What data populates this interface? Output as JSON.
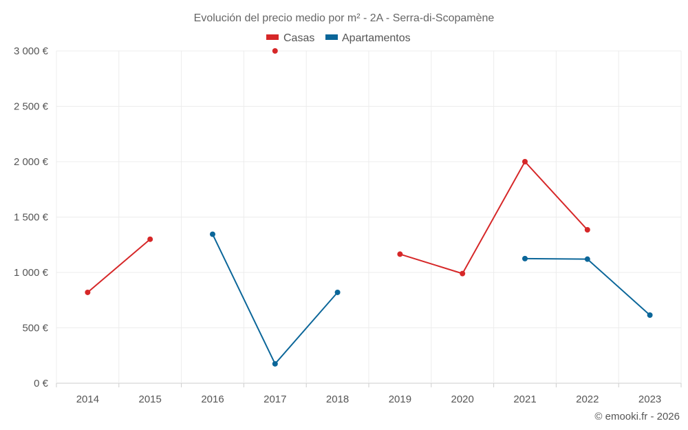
{
  "chart_data": {
    "type": "line",
    "title": "Evolución del precio medio por m² - 2A - Serra-di-Scopamène",
    "categories": [
      "2014",
      "2015",
      "2016",
      "2017",
      "2018",
      "2019",
      "2020",
      "2021",
      "2022",
      "2023"
    ],
    "y_ticks": [
      0,
      500,
      1000,
      1500,
      2000,
      2500,
      3000
    ],
    "y_tick_labels": [
      "0 €",
      "500 €",
      "1 000 €",
      "1 500 €",
      "2 000 €",
      "2 500 €",
      "3 000 €"
    ],
    "ylim": [
      0,
      3000
    ],
    "grid": true,
    "legend_position": "top-center",
    "series": [
      {
        "name": "Casas",
        "color": "#d62728",
        "values": [
          820,
          1300,
          null,
          3000,
          null,
          1165,
          990,
          2000,
          1385,
          null
        ]
      },
      {
        "name": "Apartamentos",
        "color": "#0b6699",
        "values": [
          null,
          null,
          1345,
          175,
          820,
          null,
          null,
          1125,
          1120,
          615
        ]
      }
    ],
    "credit": "© emooki.fr - 2026"
  }
}
